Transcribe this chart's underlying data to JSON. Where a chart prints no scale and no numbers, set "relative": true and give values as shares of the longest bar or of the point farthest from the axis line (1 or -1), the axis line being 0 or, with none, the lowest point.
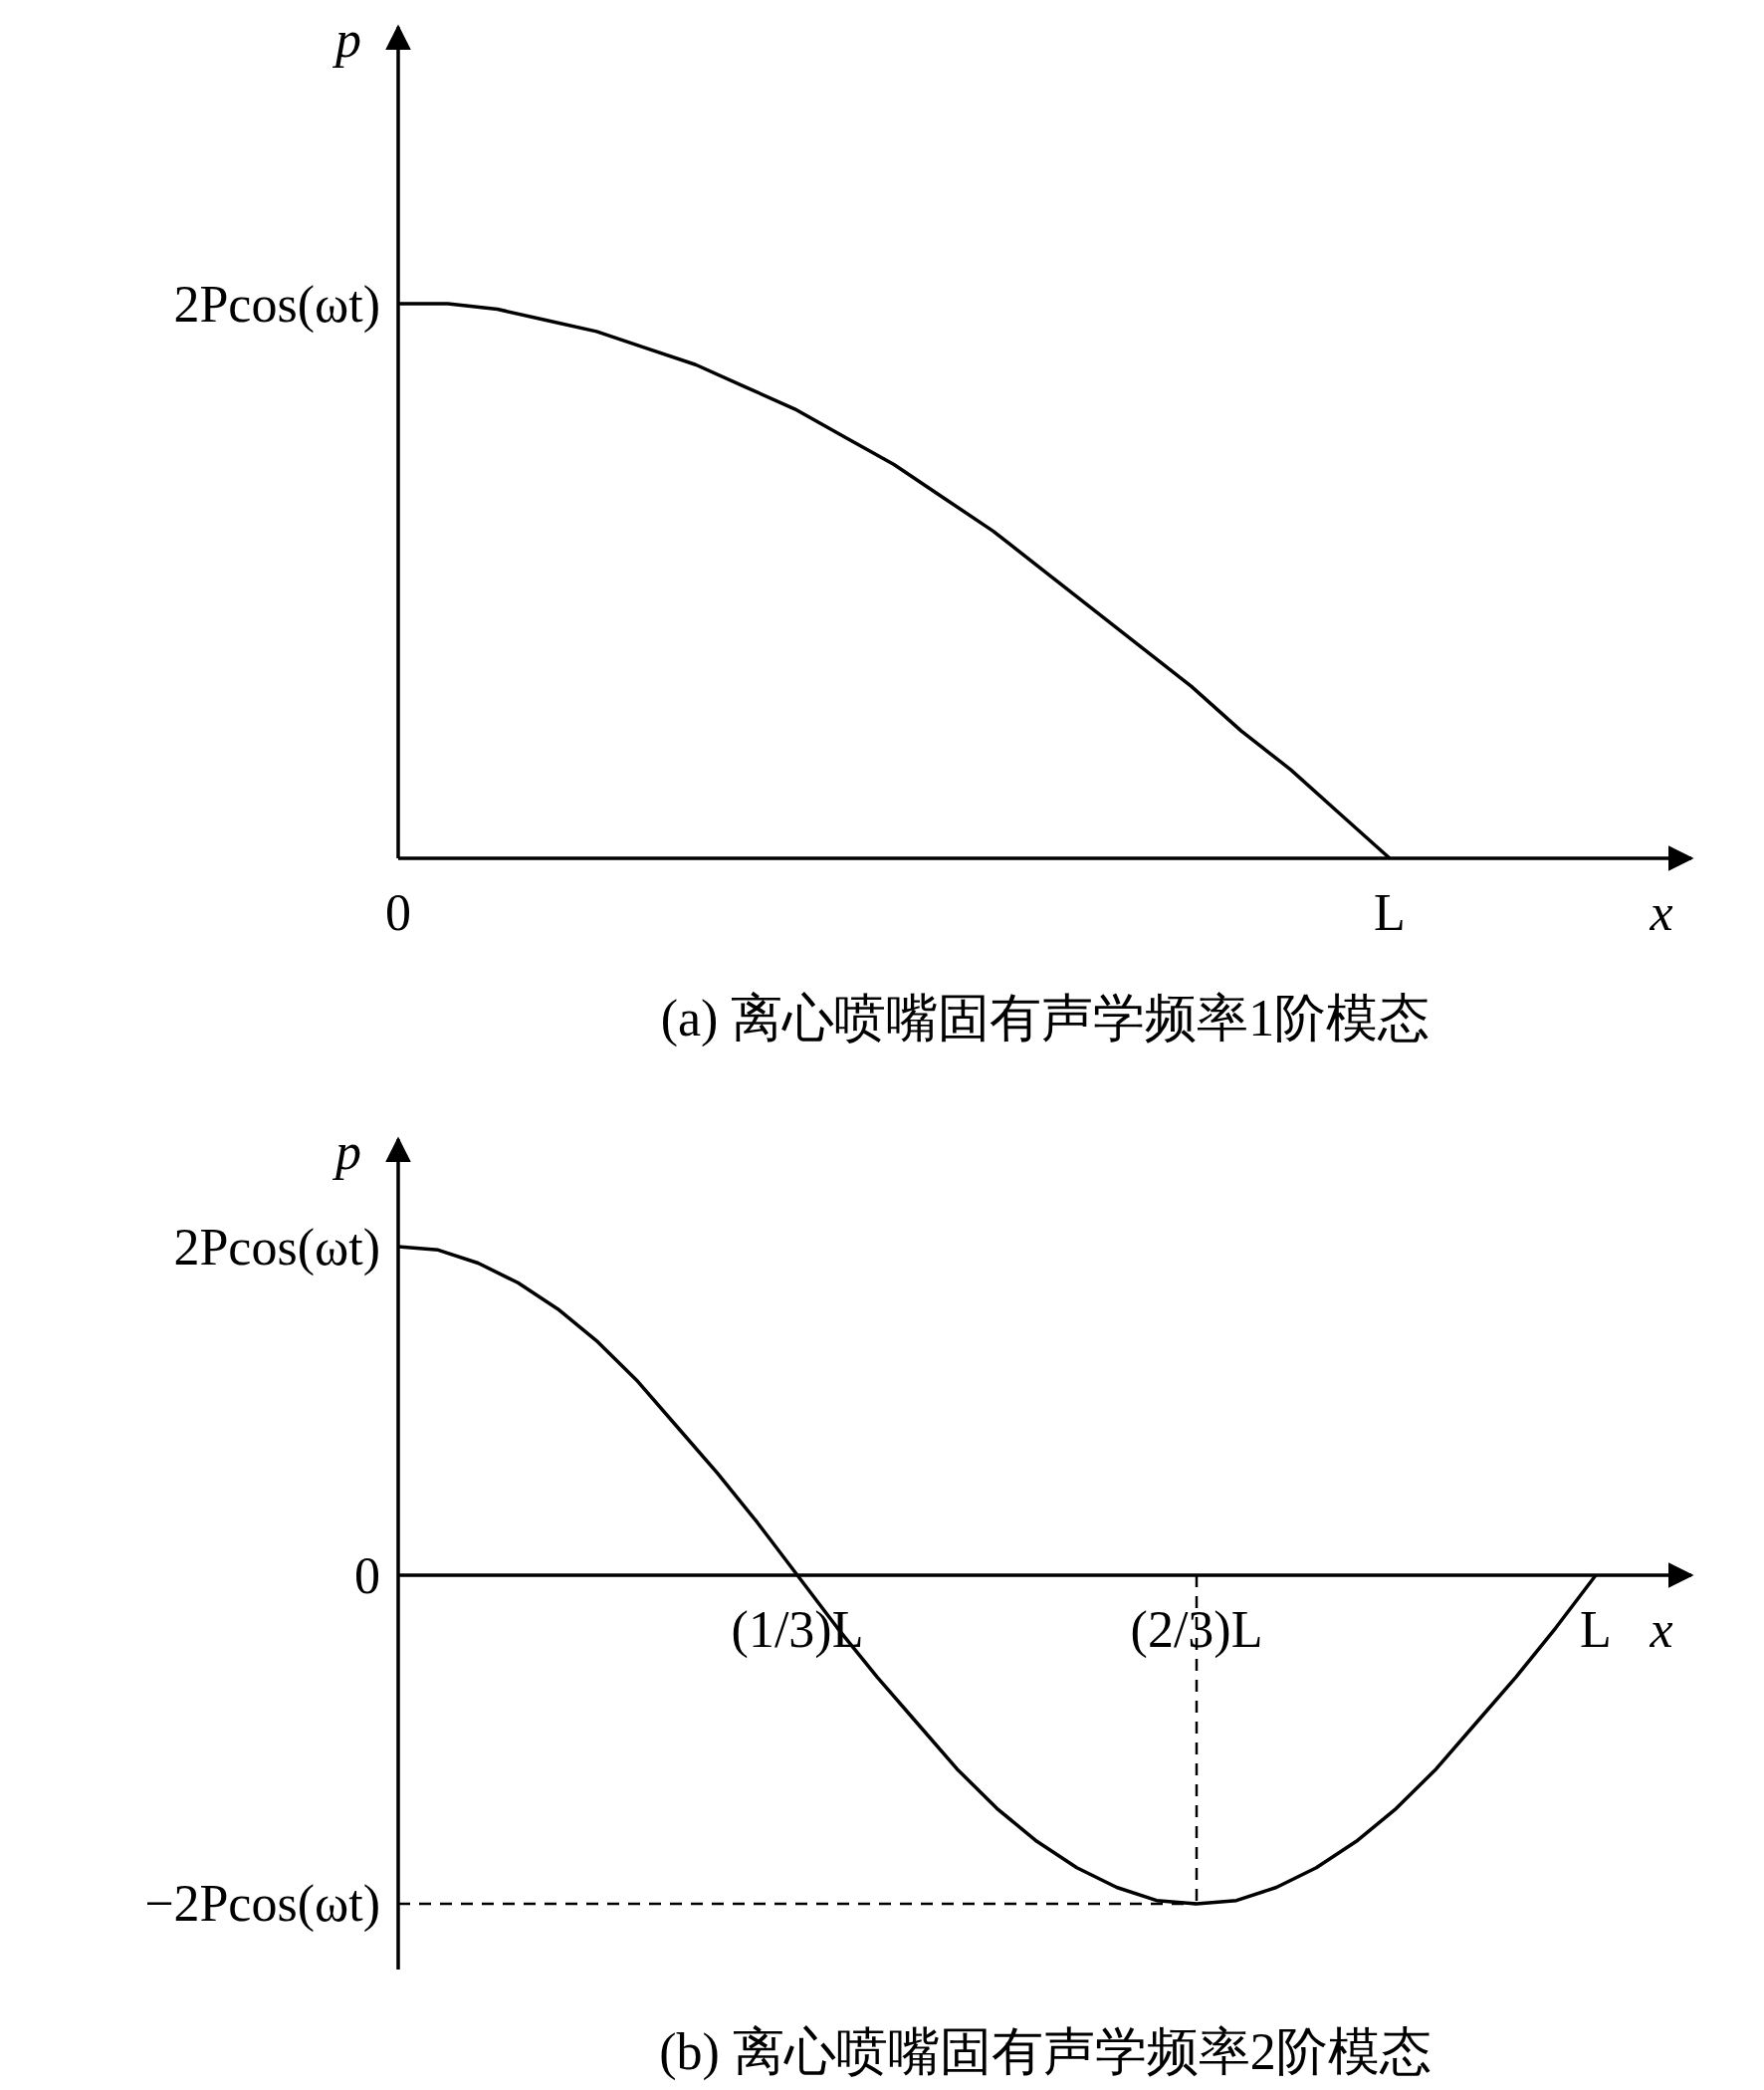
{
  "chart_data": [
    {
      "type": "line",
      "title": "(a) 离心喷嘴固有声学频率1阶模态",
      "xlabel": "x",
      "ylabel": "p",
      "relative": true,
      "categories": [
        "0",
        null,
        null,
        null,
        null,
        null,
        null,
        null,
        null,
        null,
        null,
        null,
        null,
        null,
        null,
        null,
        null,
        null,
        null,
        null,
        "L"
      ],
      "annotations": [
        "2Pcos(ωt)"
      ],
      "series": [
        {
          "color": "#000000",
          "line_style": "solid",
          "values": [
            1,
            1,
            0.99,
            0.97,
            0.95,
            0.92,
            0.89,
            0.85,
            0.81,
            0.76,
            0.71,
            0.65,
            0.59,
            0.52,
            0.45,
            0.38,
            0.31,
            0.23,
            0.16,
            0.08,
            0
          ]
        }
      ]
    },
    {
      "type": "line",
      "title": "(b) 离心喷嘴固有声学频率2阶模态",
      "xlabel": "x",
      "ylabel": "p",
      "relative": true,
      "categories": [
        null,
        null,
        null,
        null,
        null,
        null,
        null,
        null,
        null,
        null,
        "(1/3)L",
        null,
        null,
        null,
        null,
        null,
        null,
        null,
        null,
        null,
        "(2/3)L",
        null,
        null,
        null,
        null,
        null,
        null,
        null,
        null,
        null,
        "L"
      ],
      "annotations": [
        "2Pcos(ωt)",
        "0",
        "−2Pcos(ωt)"
      ],
      "ref_lines": [
        {
          "axis": "x",
          "value": "(2/3)L",
          "line_style": "dashed",
          "color": "#000000"
        },
        {
          "axis": "y",
          "value": -1,
          "line_style": "dashed",
          "color": "#000000"
        }
      ],
      "series": [
        {
          "color": "#000000",
          "line_style": "solid",
          "values": [
            1,
            0.99,
            0.95,
            0.89,
            0.81,
            0.71,
            0.59,
            0.45,
            0.31,
            0.16,
            0,
            -0.16,
            -0.31,
            -0.45,
            -0.59,
            -0.71,
            -0.81,
            -0.89,
            -0.95,
            -0.99,
            -1,
            -0.99,
            -0.95,
            -0.89,
            -0.81,
            -0.71,
            -0.59,
            -0.45,
            -0.31,
            -0.16,
            0
          ]
        }
      ]
    }
  ]
}
